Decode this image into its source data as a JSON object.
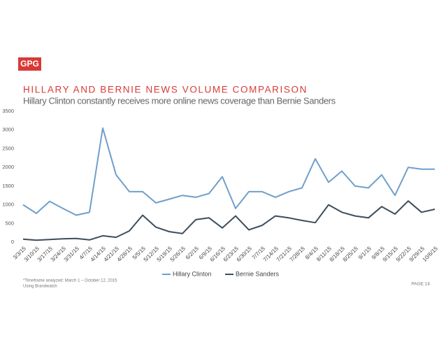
{
  "logo": "GPG",
  "chart_data": {
    "type": "line",
    "title": "HILLARY AND BERNIE NEWS VOLUME COMPARISON",
    "subtitle": "Hillary Clinton constantly receives more online news coverage than Bernie Sanders",
    "categories": [
      "3/3/15",
      "3/10/15",
      "3/17/15",
      "3/24/15",
      "3/31/15",
      "4/7/15",
      "4/14/15",
      "4/21/15",
      "4/28/15",
      "5/5/15",
      "5/12/15",
      "5/19/15",
      "5/26/15",
      "6/2/15",
      "6/9/15",
      "6/16/15",
      "6/23/15",
      "6/30/15",
      "7/7/15",
      "7/14/15",
      "7/21/15",
      "7/28/15",
      "8/4/15",
      "8/11/15",
      "8/18/15",
      "8/25/15",
      "9/1/15",
      "9/8/15",
      "9/15/15",
      "9/22/15",
      "9/29/15",
      "10/6/15"
    ],
    "series": [
      {
        "name": "Hillary Clinton",
        "color": "#6f9fca",
        "values": [
          1000,
          770,
          1090,
          900,
          720,
          800,
          3050,
          1800,
          1350,
          1350,
          1050,
          1150,
          1250,
          1200,
          1300,
          1750,
          900,
          1350,
          1350,
          1200,
          1350,
          1450,
          2230,
          1600,
          1900,
          1500,
          1450,
          1800,
          1250,
          2000,
          1950,
          1950
        ]
      },
      {
        "name": "Bernie Sanders",
        "color": "#3d4d5c",
        "values": [
          80,
          50,
          70,
          90,
          100,
          60,
          170,
          130,
          300,
          720,
          400,
          280,
          230,
          600,
          650,
          380,
          700,
          330,
          450,
          700,
          650,
          580,
          520,
          1000,
          800,
          700,
          650,
          950,
          750,
          1100,
          800,
          880
        ]
      }
    ],
    "ylim": [
      0,
      3500
    ],
    "yticks": [
      0,
      500,
      1000,
      1500,
      2000,
      2500,
      3000,
      3500
    ],
    "grid": false,
    "legend": "bottom"
  },
  "footnotes": [
    "*Timeframe analyzed: March 1 – October 12, 2015",
    "Using Brandwatch"
  ],
  "page": "PAGE 14"
}
